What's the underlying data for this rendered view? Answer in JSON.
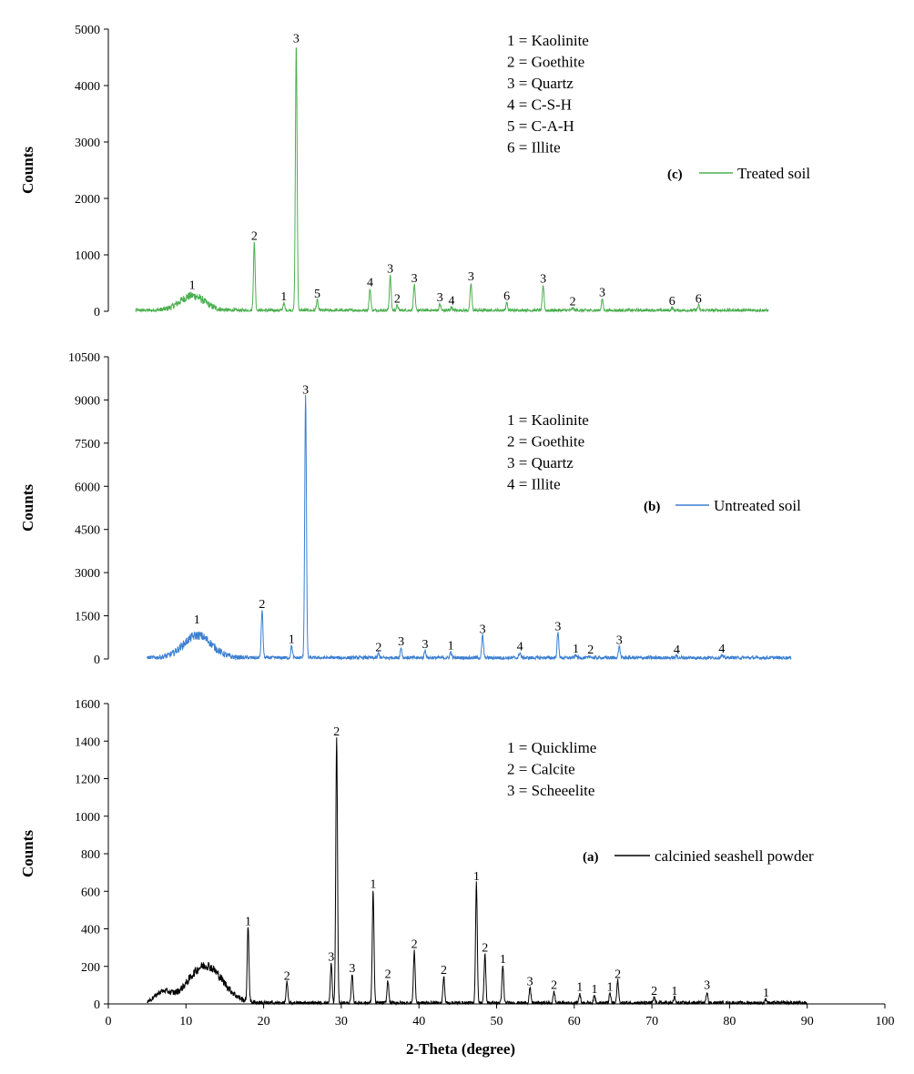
{
  "chart_data": [
    {
      "id": "c",
      "type": "line",
      "series_name": "Treated soil",
      "tag": "(c)",
      "color": "#4caf50",
      "ylabel": "Counts",
      "xlabel": "",
      "xlim": [
        0,
        100
      ],
      "ylim": [
        0,
        5000
      ],
      "yticks": [
        0,
        1000,
        2000,
        3000,
        4000,
        5000
      ],
      "x_start": 3.5,
      "x_end": 85,
      "baseline": 15,
      "hump": {
        "center": 10.8,
        "height": 260,
        "width": 1.6
      },
      "phases": [
        {
          "key": "1",
          "label": "Kaolinite"
        },
        {
          "key": "2",
          "label": "Goethite"
        },
        {
          "key": "3",
          "label": "Quartz"
        },
        {
          "key": "4",
          "label": "C-S-H"
        },
        {
          "key": "5",
          "label": "C-A-H"
        },
        {
          "key": "6",
          "label": "Illite"
        }
      ],
      "peaks": [
        {
          "x": 10.8,
          "y": 330,
          "label": "1"
        },
        {
          "x": 18.8,
          "y": 1200,
          "label": "2"
        },
        {
          "x": 22.6,
          "y": 130,
          "label": "1"
        },
        {
          "x": 24.2,
          "y": 4700,
          "label": "3"
        },
        {
          "x": 26.9,
          "y": 180,
          "label": "5"
        },
        {
          "x": 33.7,
          "y": 380,
          "label": "4"
        },
        {
          "x": 36.3,
          "y": 620,
          "label": "3"
        },
        {
          "x": 37.2,
          "y": 90,
          "label": "2"
        },
        {
          "x": 39.4,
          "y": 450,
          "label": "3"
        },
        {
          "x": 42.7,
          "y": 110,
          "label": "3"
        },
        {
          "x": 44.2,
          "y": 60,
          "label": "4"
        },
        {
          "x": 46.7,
          "y": 480,
          "label": "3"
        },
        {
          "x": 51.3,
          "y": 140,
          "label": "6"
        },
        {
          "x": 56.0,
          "y": 440,
          "label": "3"
        },
        {
          "x": 59.8,
          "y": 40,
          "label": "2"
        },
        {
          "x": 63.6,
          "y": 200,
          "label": "3"
        },
        {
          "x": 72.6,
          "y": 50,
          "label": "6"
        },
        {
          "x": 76.0,
          "y": 90,
          "label": "6"
        }
      ]
    },
    {
      "id": "b",
      "type": "line",
      "series_name": "Untreated soil",
      "tag": "(b)",
      "color": "#3b7fd1",
      "ylabel": "Counts",
      "xlabel": "",
      "xlim": [
        0,
        100
      ],
      "ylim": [
        0,
        10500
      ],
      "yticks": [
        0,
        1500,
        3000,
        4500,
        6000,
        7500,
        9000,
        10500
      ],
      "x_start": 5,
      "x_end": 88,
      "baseline": 40,
      "hump": {
        "center": 11.5,
        "height": 780,
        "width": 1.8
      },
      "phases": [
        {
          "key": "1",
          "label": "Kaolinite"
        },
        {
          "key": "2",
          "label": "Goethite"
        },
        {
          "key": "3",
          "label": "Quartz"
        },
        {
          "key": "4",
          "label": "Illite"
        }
      ],
      "peaks": [
        {
          "x": 11.4,
          "y": 1100,
          "label": "1"
        },
        {
          "x": 19.8,
          "y": 1650,
          "label": "2"
        },
        {
          "x": 23.6,
          "y": 420,
          "label": "1"
        },
        {
          "x": 25.4,
          "y": 9100,
          "label": "3"
        },
        {
          "x": 34.8,
          "y": 150,
          "label": "2"
        },
        {
          "x": 37.7,
          "y": 350,
          "label": "3"
        },
        {
          "x": 40.8,
          "y": 260,
          "label": "3"
        },
        {
          "x": 44.1,
          "y": 200,
          "label": "1"
        },
        {
          "x": 48.2,
          "y": 780,
          "label": "3"
        },
        {
          "x": 53.0,
          "y": 180,
          "label": "4"
        },
        {
          "x": 57.9,
          "y": 870,
          "label": "3"
        },
        {
          "x": 60.2,
          "y": 100,
          "label": "1"
        },
        {
          "x": 62.1,
          "y": 60,
          "label": "2"
        },
        {
          "x": 65.8,
          "y": 400,
          "label": "3"
        },
        {
          "x": 73.2,
          "y": 70,
          "label": "4"
        },
        {
          "x": 79.0,
          "y": 90,
          "label": "4"
        }
      ]
    },
    {
      "id": "a",
      "type": "line",
      "series_name": "calcinied seashell powder",
      "tag": "(a)",
      "color": "#000000",
      "ylabel": "Counts",
      "xlabel": "2-Theta (degree)",
      "xlim": [
        0,
        100
      ],
      "ylim": [
        0,
        1600
      ],
      "yticks": [
        0,
        200,
        400,
        600,
        800,
        1000,
        1200,
        1400,
        1600
      ],
      "xticks": [
        0,
        10,
        20,
        30,
        40,
        50,
        60,
        70,
        80,
        90,
        100
      ],
      "x_start": 5,
      "x_end": 90,
      "baseline": 5,
      "hump": {
        "center": 12.5,
        "height": 200,
        "width": 2.2
      },
      "hump2": {
        "center": 7.0,
        "height": 55,
        "width": 1.0
      },
      "phases": [
        {
          "key": "1",
          "label": "Quicklime"
        },
        {
          "key": "2",
          "label": "Calcite"
        },
        {
          "key": "3",
          "label": "Scheeelite"
        }
      ],
      "peaks": [
        {
          "x": 18.0,
          "y": 400,
          "label": "1"
        },
        {
          "x": 23.0,
          "y": 110,
          "label": "2"
        },
        {
          "x": 28.7,
          "y": 210,
          "label": "3"
        },
        {
          "x": 29.4,
          "y": 1410,
          "label": "2"
        },
        {
          "x": 31.4,
          "y": 150,
          "label": "3"
        },
        {
          "x": 34.1,
          "y": 600,
          "label": "1"
        },
        {
          "x": 36.0,
          "y": 120,
          "label": "2"
        },
        {
          "x": 39.4,
          "y": 280,
          "label": "2"
        },
        {
          "x": 43.2,
          "y": 140,
          "label": "2"
        },
        {
          "x": 47.4,
          "y": 640,
          "label": "1"
        },
        {
          "x": 48.5,
          "y": 260,
          "label": "2"
        },
        {
          "x": 50.8,
          "y": 200,
          "label": "1"
        },
        {
          "x": 54.3,
          "y": 80,
          "label": "3"
        },
        {
          "x": 57.4,
          "y": 60,
          "label": "2"
        },
        {
          "x": 60.7,
          "y": 50,
          "label": "1"
        },
        {
          "x": 62.6,
          "y": 40,
          "label": "1"
        },
        {
          "x": 64.6,
          "y": 50,
          "label": "1"
        },
        {
          "x": 65.6,
          "y": 120,
          "label": "2"
        },
        {
          "x": 70.3,
          "y": 30,
          "label": "2"
        },
        {
          "x": 72.9,
          "y": 30,
          "label": "1"
        },
        {
          "x": 77.1,
          "y": 60,
          "label": "3"
        },
        {
          "x": 84.7,
          "y": 20,
          "label": "1"
        }
      ]
    }
  ]
}
